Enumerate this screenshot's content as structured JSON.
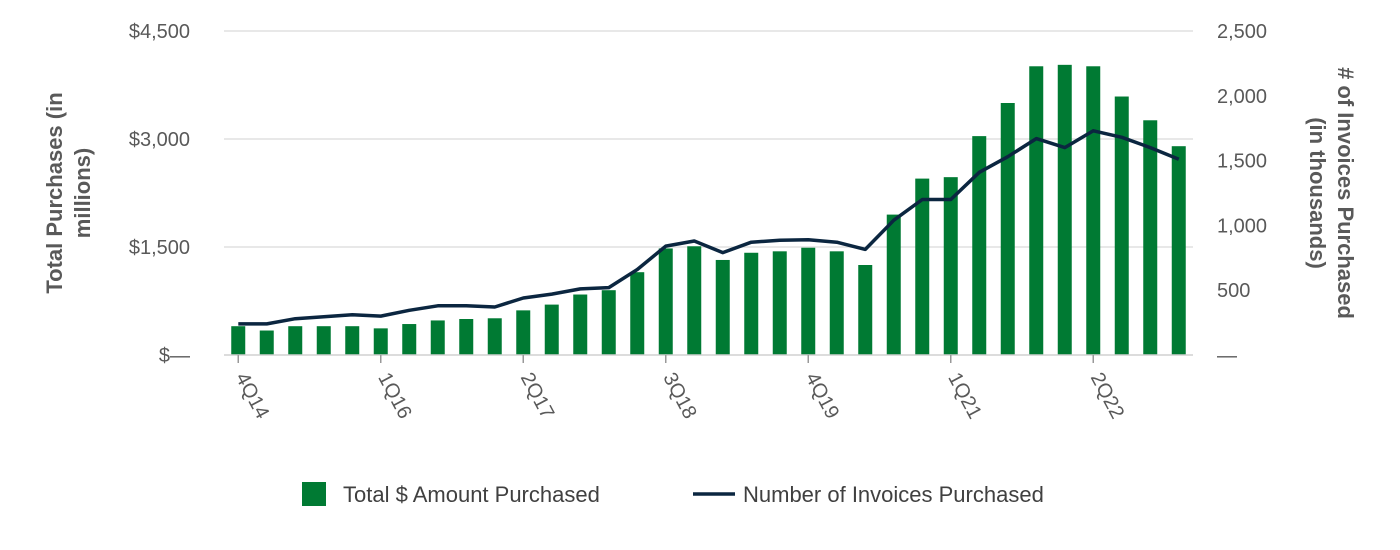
{
  "chart_data": {
    "type": "bar",
    "categories": [
      "4Q14",
      "1Q15",
      "2Q15",
      "3Q15",
      "4Q15",
      "1Q16",
      "2Q16",
      "3Q16",
      "4Q16",
      "1Q17",
      "2Q17",
      "3Q17",
      "4Q17",
      "1Q18",
      "2Q18",
      "3Q18",
      "4Q18",
      "1Q19",
      "2Q19",
      "3Q19",
      "4Q19",
      "1Q20",
      "2Q20",
      "3Q20",
      "4Q20",
      "1Q21",
      "2Q21",
      "3Q21",
      "4Q21",
      "1Q22",
      "2Q22",
      "3Q22",
      "4Q22",
      "1Q23"
    ],
    "x_tick_labels": [
      "4Q14",
      "1Q16",
      "2Q17",
      "3Q18",
      "4Q19",
      "1Q21",
      "2Q22"
    ],
    "series": [
      {
        "name": "Total $ Amount Purchased",
        "kind": "bar",
        "axis": "left",
        "color": "#007A33",
        "values": [
          400,
          340,
          400,
          400,
          400,
          370,
          430,
          480,
          500,
          510,
          620,
          700,
          840,
          900,
          1150,
          1480,
          1510,
          1320,
          1420,
          1440,
          1490,
          1440,
          1250,
          1950,
          2450,
          2470,
          3040,
          3500,
          4010,
          4030,
          4010,
          3590,
          3260,
          2900
        ]
      },
      {
        "name": "Number of Invoices Purchased",
        "kind": "line",
        "axis": "right",
        "color": "#0B2640",
        "values": [
          240,
          240,
          280,
          295,
          310,
          300,
          345,
          380,
          380,
          370,
          440,
          470,
          510,
          520,
          660,
          840,
          880,
          790,
          870,
          885,
          890,
          870,
          815,
          1040,
          1200,
          1200,
          1410,
          1530,
          1670,
          1600,
          1730,
          1680,
          1600,
          1510
        ]
      }
    ],
    "left_axis": {
      "title": "Total Purchases (in millions)",
      "title_lines": [
        "Total Purchases (in",
        "millions)"
      ],
      "ylim": [
        0,
        4500
      ],
      "ticks": [
        0,
        1500,
        3000,
        4500
      ],
      "tick_labels": [
        "$—",
        "$1,500",
        "$3,000",
        "$4,500"
      ]
    },
    "right_axis": {
      "title": "# of Invoices Purchased (in thousands)",
      "title_lines": [
        "# of Invoices Purchased",
        "(in thousands)"
      ],
      "ylim": [
        0,
        2500
      ],
      "ticks": [
        0,
        500,
        1000,
        1500,
        2000,
        2500
      ],
      "tick_labels": [
        "—",
        "500",
        "1,000",
        "1,500",
        "2,000",
        "2,500"
      ]
    },
    "grid": true,
    "legend_position": "bottom"
  }
}
